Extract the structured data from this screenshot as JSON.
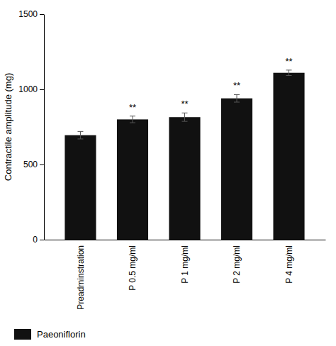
{
  "chart_data": {
    "type": "bar",
    "categories": [
      "Preadminstration",
      "P 0.5 mg/ml",
      "P 1 mg/ml",
      "P 2 mg/ml",
      "P 4 mg/ml"
    ],
    "series": [
      {
        "name": "Paeoniflorin",
        "color": "#111111",
        "values": [
          695,
          800,
          815,
          940,
          1110
        ],
        "errors": [
          25,
          22,
          28,
          25,
          18
        ]
      }
    ],
    "ylabel": "Contractile amplitude (mg)",
    "ylim": [
      0,
      1500
    ],
    "yticks": [
      0,
      500,
      1000,
      1500
    ],
    "annotations": [
      {
        "category": "P 0.5 mg/ml",
        "text": "**"
      },
      {
        "category": "P 1 mg/ml",
        "text": "**"
      },
      {
        "category": "P 2 mg/ml",
        "text": "**"
      },
      {
        "category": "P 4 mg/ml",
        "text": "**"
      }
    ],
    "grid": false,
    "legend": "lower left"
  }
}
